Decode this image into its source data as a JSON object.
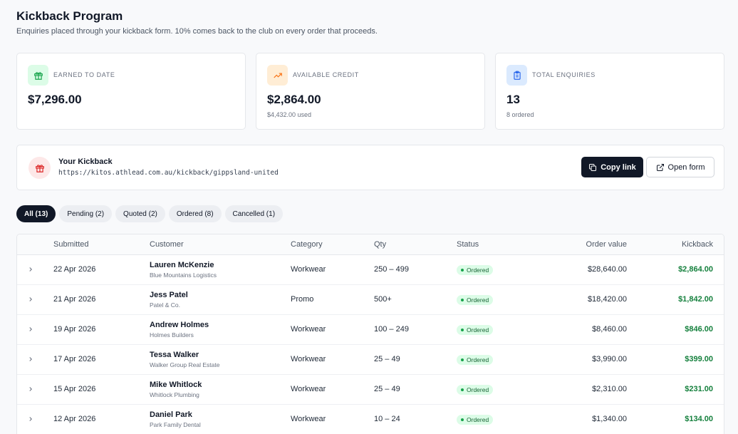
{
  "header": {
    "title": "Kickback Program",
    "subtitle": "Enquiries placed through your kickback form. 10% comes back to the club on every order that proceeds."
  },
  "stats": [
    {
      "label": "EARNED TO DATE",
      "value": "$7,296.00",
      "sub": "",
      "icon": "gift-icon",
      "color": "#16a34a"
    },
    {
      "label": "AVAILABLE CREDIT",
      "value": "$2,864.00",
      "sub": "$4,432.00 used",
      "icon": "trending-up-icon",
      "color": "#f97316"
    },
    {
      "label": "TOTAL ENQUIRIES",
      "value": "13",
      "sub": "8 ordered",
      "icon": "clipboard-icon",
      "color": "#2563eb"
    }
  ],
  "kickback": {
    "title": "Your Kickback",
    "url": "https://kitos.athlead.com.au/kickback/gippsland-united",
    "copy_label": "Copy link",
    "open_label": "Open form"
  },
  "tabs": [
    {
      "label": "All (13)",
      "active": true
    },
    {
      "label": "Pending (2)",
      "active": false
    },
    {
      "label": "Quoted (2)",
      "active": false
    },
    {
      "label": "Ordered (8)",
      "active": false
    },
    {
      "label": "Cancelled (1)",
      "active": false
    }
  ],
  "table": {
    "columns": [
      "Submitted",
      "Customer",
      "Category",
      "Qty",
      "Status",
      "Order value",
      "Kickback"
    ],
    "rows": [
      {
        "submitted": "22 Apr 2026",
        "name": "Lauren McKenzie",
        "org": "Blue Mountains Logistics",
        "category": "Workwear",
        "qty": "250 – 499",
        "status": "Ordered",
        "value": "$28,640.00",
        "kickback": "$2,864.00"
      },
      {
        "submitted": "21 Apr 2026",
        "name": "Jess Patel",
        "org": "Patel & Co.",
        "category": "Promo",
        "qty": "500+",
        "status": "Ordered",
        "value": "$18,420.00",
        "kickback": "$1,842.00"
      },
      {
        "submitted": "19 Apr 2026",
        "name": "Andrew Holmes",
        "org": "Holmes Builders",
        "category": "Workwear",
        "qty": "100 – 249",
        "status": "Ordered",
        "value": "$8,460.00",
        "kickback": "$846.00"
      },
      {
        "submitted": "17 Apr 2026",
        "name": "Tessa Walker",
        "org": "Walker Group Real Estate",
        "category": "Workwear",
        "qty": "25 – 49",
        "status": "Ordered",
        "value": "$3,990.00",
        "kickback": "$399.00"
      },
      {
        "submitted": "15 Apr 2026",
        "name": "Mike Whitlock",
        "org": "Whitlock Plumbing",
        "category": "Workwear",
        "qty": "25 – 49",
        "status": "Ordered",
        "value": "$2,310.00",
        "kickback": "$231.00"
      },
      {
        "submitted": "12 Apr 2026",
        "name": "Daniel Park",
        "org": "Park Family Dental",
        "category": "Workwear",
        "qty": "10 – 24",
        "status": "Ordered",
        "value": "$1,340.00",
        "kickback": "$134.00"
      }
    ]
  }
}
